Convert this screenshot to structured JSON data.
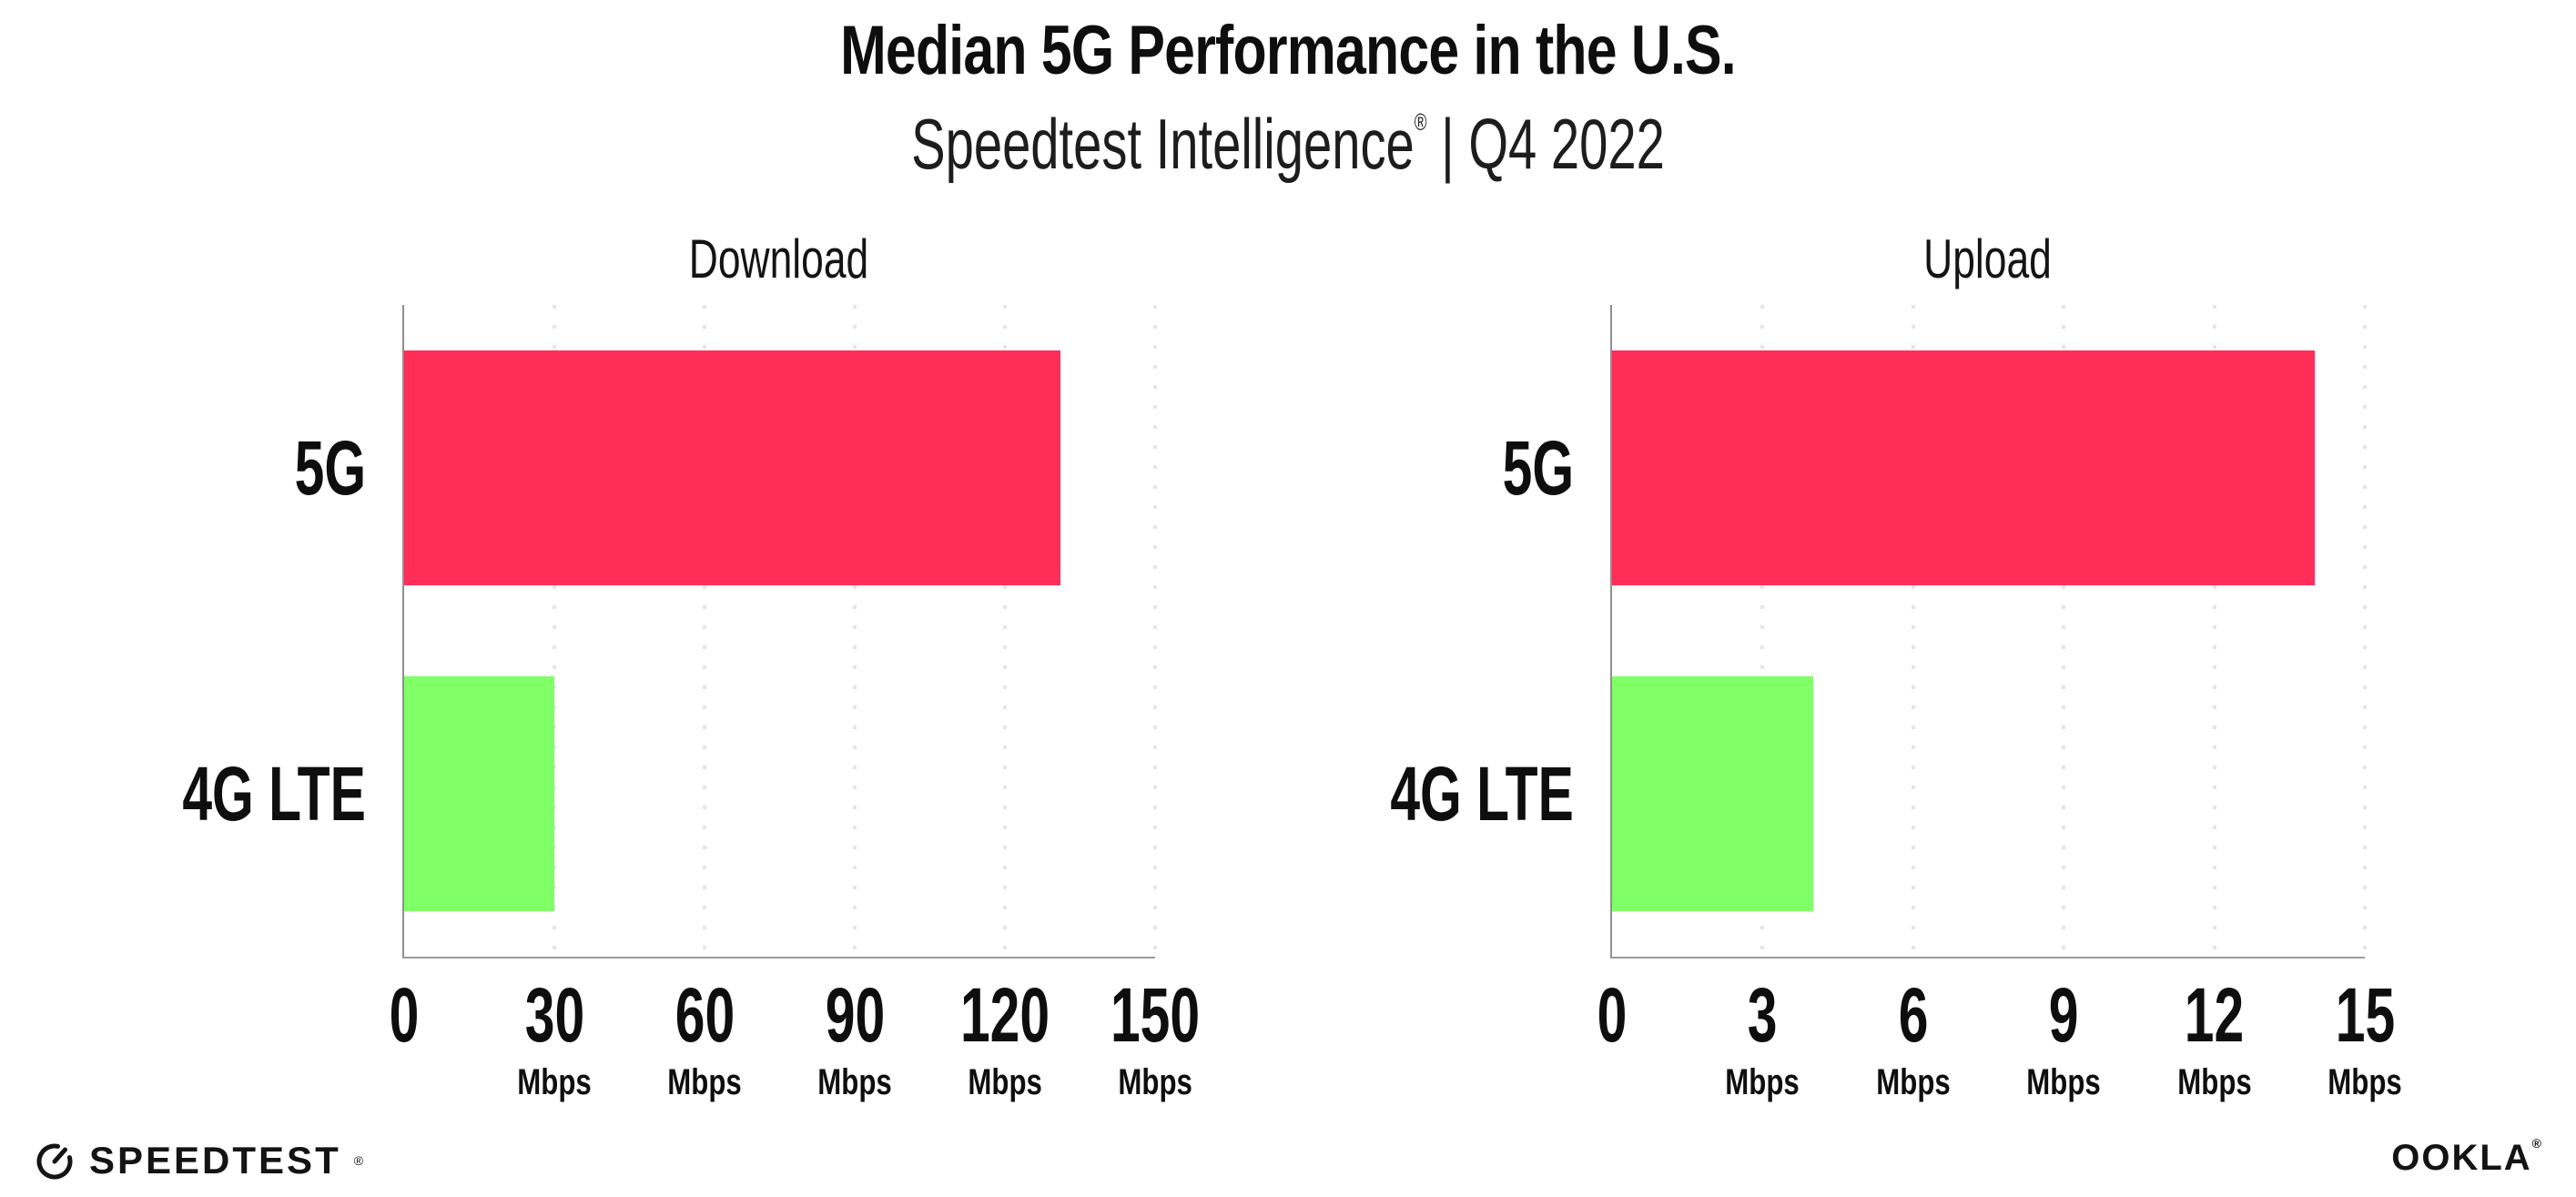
{
  "header": {
    "title": "Median 5G Performance in the U.S.",
    "subtitle_product": "Speedtest Intelligence",
    "subtitle_registered": "®",
    "subtitle_period": " | Q4 2022"
  },
  "chart_data": [
    {
      "type": "bar",
      "orientation": "horizontal",
      "title": "Download",
      "categories": [
        "5G",
        "4G LTE"
      ],
      "values": [
        131,
        30
      ],
      "unit": "Mbps",
      "xlabel": "",
      "ylabel": "",
      "xlim": [
        0,
        150
      ],
      "xticks": [
        0,
        30,
        60,
        90,
        120,
        150
      ],
      "bar_colors": [
        "#FF2E58",
        "#80FF66"
      ],
      "grid": "vertical dotted",
      "legend": "none"
    },
    {
      "type": "bar",
      "orientation": "horizontal",
      "title": "Upload",
      "categories": [
        "5G",
        "4G LTE"
      ],
      "values": [
        14,
        4
      ],
      "unit": "Mbps",
      "xlabel": "",
      "ylabel": "",
      "xlim": [
        0,
        15
      ],
      "xticks": [
        0,
        3,
        6,
        9,
        12,
        15
      ],
      "bar_colors": [
        "#FF2E58",
        "#80FF66"
      ],
      "grid": "vertical dotted",
      "legend": "none"
    }
  ],
  "footer": {
    "speedtest_label": "SPEEDTEST",
    "speedtest_mark": "®",
    "ookla_label": "OOKLA",
    "ookla_mark": "®"
  },
  "style": {
    "bar_5g_color": "#FF2E58",
    "bar_4g_color": "#80FF66",
    "gridline_color": "#E4E4EF",
    "axis_color": "#939393",
    "text_color": "#0E0E0E"
  }
}
